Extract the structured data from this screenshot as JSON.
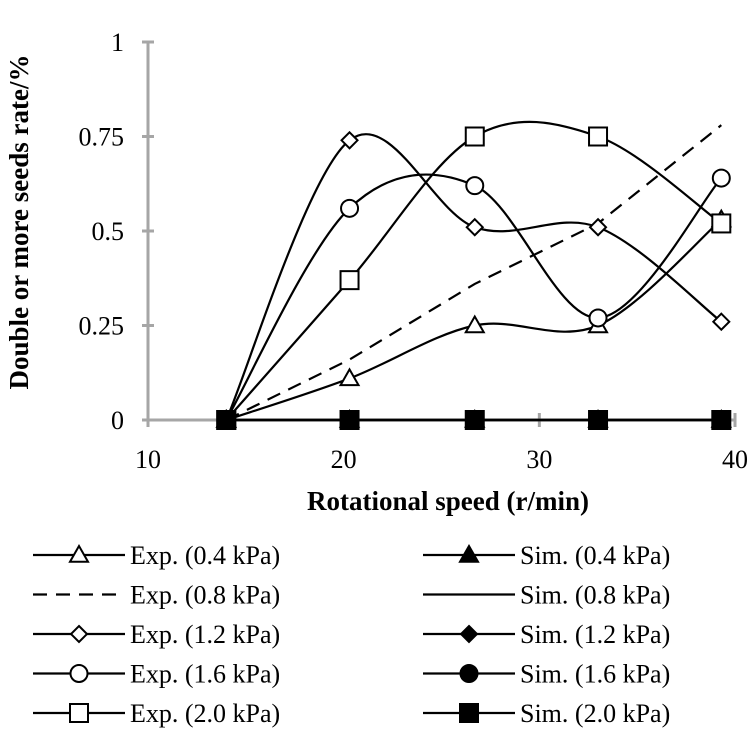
{
  "chart_data": {
    "type": "line",
    "title": "",
    "xlabel": "Rotational speed (r/min)",
    "ylabel": "Double or more seeds rate/%",
    "xlim": [
      10,
      40
    ],
    "ylim": [
      0,
      1
    ],
    "x_ticks": [
      "10",
      "20",
      "30",
      "40"
    ],
    "y_ticks": [
      "0",
      "0.25",
      "0.5",
      "0.75",
      "1"
    ],
    "x": [
      14,
      20.3,
      26.7,
      33,
      39.3
    ],
    "grid": false,
    "legend_position": "bottom",
    "series": [
      {
        "name": "Exp. (0.4 kPa)",
        "values": [
          0,
          0.11,
          0.25,
          0.25,
          0.53
        ],
        "marker": "triangle-open",
        "line": "smooth",
        "color": "#000000"
      },
      {
        "name": "Sim. (0.4 kPa)",
        "values": [
          0,
          0,
          0,
          0,
          0
        ],
        "marker": "triangle-filled",
        "line": "straight",
        "color": "#000000"
      },
      {
        "name": "Exp. (0.8 kPa)",
        "values": [
          0,
          0.16,
          0.36,
          0.52,
          0.78
        ],
        "marker": "none",
        "line": "dashed",
        "color": "#000000"
      },
      {
        "name": "Sim. (0.8 kPa)",
        "values": [
          0,
          0,
          0,
          0,
          0
        ],
        "marker": "none",
        "line": "straight",
        "color": "#000000"
      },
      {
        "name": "Exp. (1.2 kPa)",
        "values": [
          0,
          0.74,
          0.51,
          0.51,
          0.26
        ],
        "marker": "diamond-open",
        "line": "smooth",
        "color": "#000000"
      },
      {
        "name": "Sim. (1.2 kPa)",
        "values": [
          0,
          0,
          0,
          0,
          0
        ],
        "marker": "diamond-filled",
        "line": "straight",
        "color": "#000000"
      },
      {
        "name": "Exp. (1.6 kPa)",
        "values": [
          0,
          0.56,
          0.62,
          0.27,
          0.64
        ],
        "marker": "circle-open",
        "line": "smooth",
        "color": "#000000"
      },
      {
        "name": "Sim. (1.6 kPa)",
        "values": [
          0,
          0,
          0,
          0,
          0
        ],
        "marker": "circle-filled",
        "line": "straight",
        "color": "#000000"
      },
      {
        "name": "Exp. (2.0 kPa)",
        "values": [
          0,
          0.37,
          0.75,
          0.75,
          0.52
        ],
        "marker": "square-open",
        "line": "smooth",
        "color": "#000000"
      },
      {
        "name": "Sim. (2.0 kPa)",
        "values": [
          0,
          0,
          0,
          0,
          0
        ],
        "marker": "square-filled",
        "line": "straight",
        "color": "#000000"
      }
    ],
    "colors": {
      "axis": "#a6a6a6",
      "ink": "#000000"
    }
  }
}
